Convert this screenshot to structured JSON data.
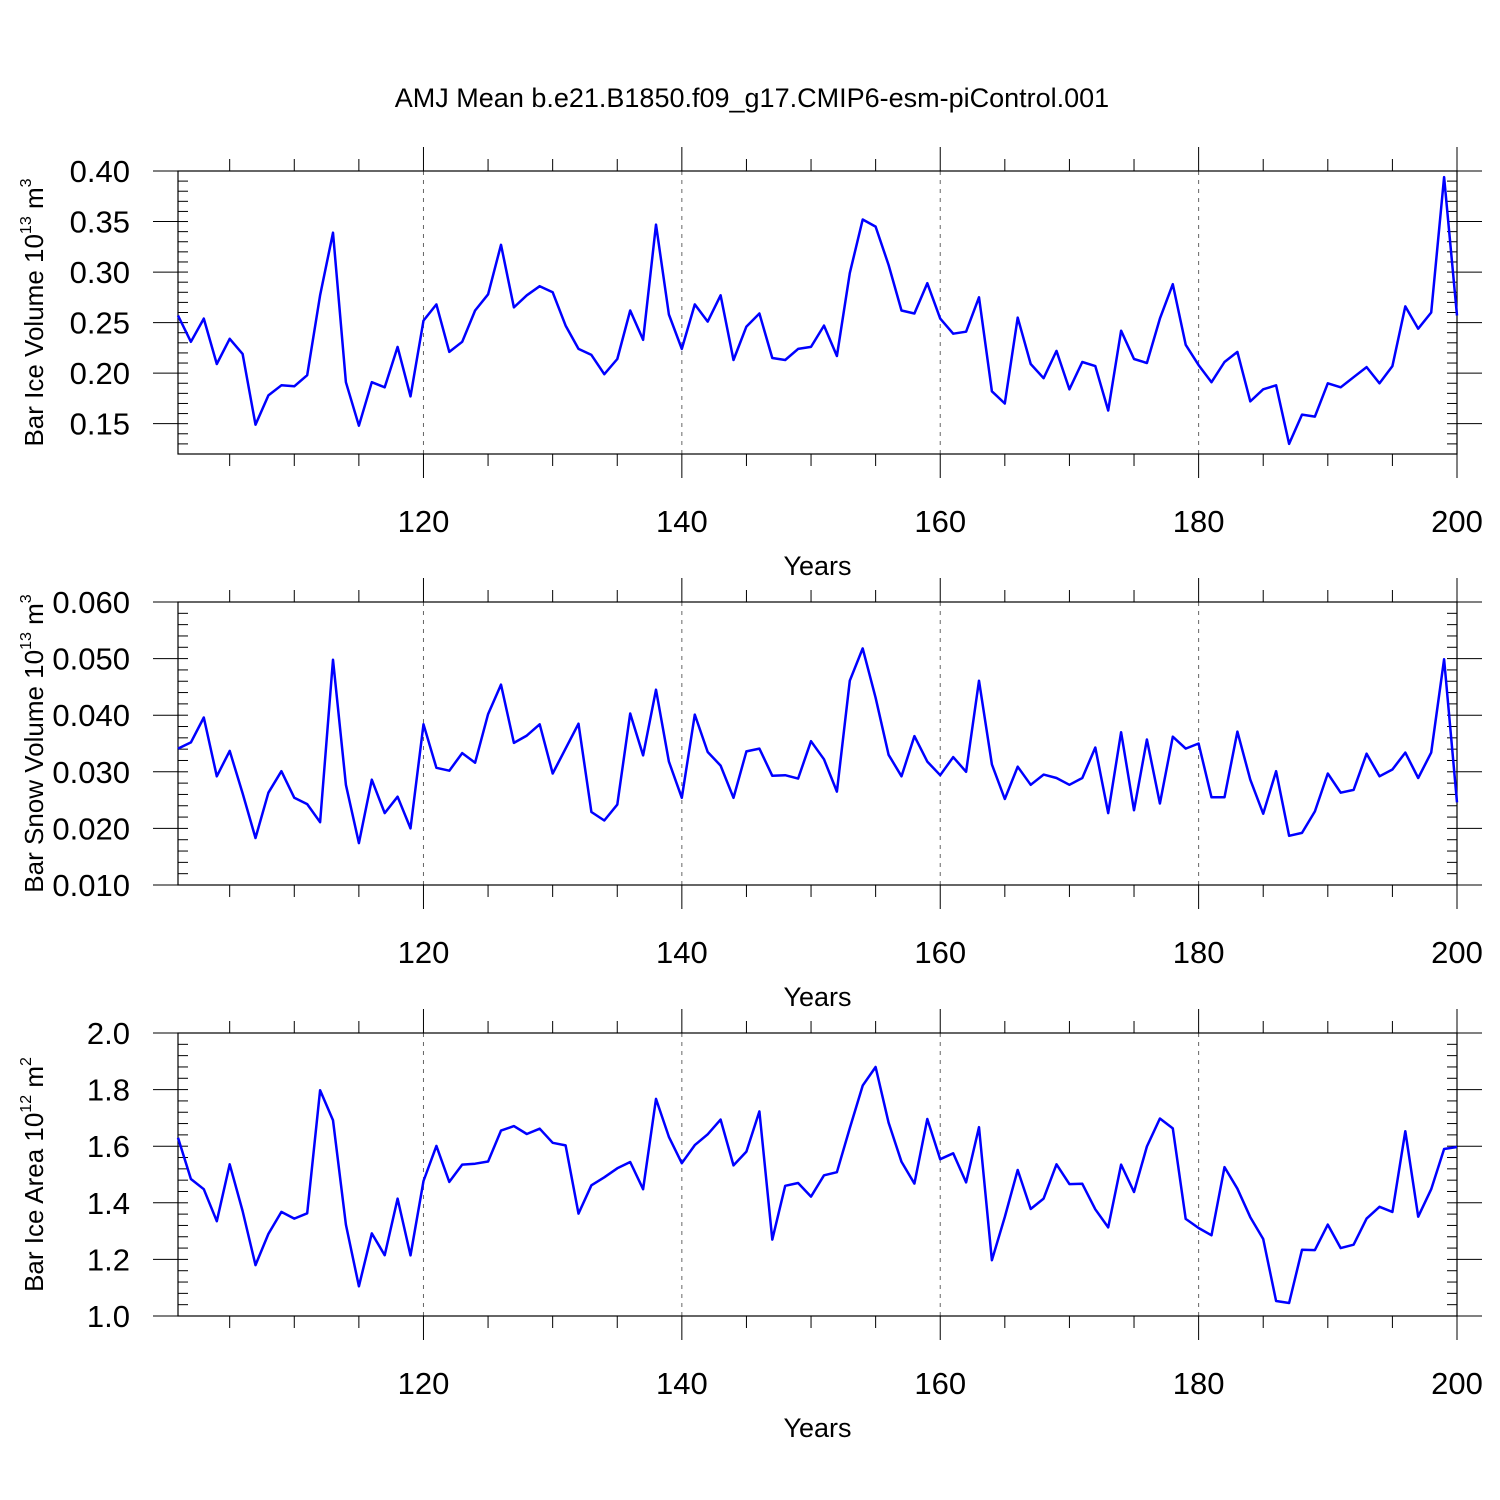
{
  "title": "AMJ Mean b.e21.B1850.f09_g17.CMIP6-esm-piControl.001",
  "colors": {
    "line": "#0000ff",
    "axes": "#000000",
    "grid": "#666666"
  },
  "chart_data": [
    {
      "type": "line",
      "xlabel": "Years",
      "ylabel": {
        "prefix": "Bar Ice Volume 10",
        "exp1": "13",
        "mid": " m",
        "exp2": "3"
      },
      "xlim": [
        101,
        200
      ],
      "ylim": [
        0.12,
        0.4
      ],
      "xticks": [
        120,
        140,
        160,
        180,
        200
      ],
      "xtick_labels": [
        "120",
        "140",
        "160",
        "180",
        "200"
      ],
      "yticks": [
        0.15,
        0.2,
        0.25,
        0.3,
        0.35,
        0.4
      ],
      "ytick_labels": [
        "0.15",
        "0.20",
        "0.25",
        "0.30",
        "0.35",
        "0.40"
      ],
      "yminor_step": 0.01,
      "grid": "dashed vertical at major x ticks",
      "x_start": 101,
      "values": [
        0.257,
        0.231,
        0.254,
        0.209,
        0.234,
        0.219,
        0.149,
        0.178,
        0.188,
        0.187,
        0.198,
        0.277,
        0.339,
        0.191,
        0.148,
        0.191,
        0.186,
        0.226,
        0.177,
        0.252,
        0.268,
        0.221,
        0.231,
        0.262,
        0.278,
        0.327,
        0.265,
        0.277,
        0.286,
        0.28,
        0.247,
        0.224,
        0.218,
        0.199,
        0.214,
        0.262,
        0.233,
        0.347,
        0.258,
        0.224,
        0.268,
        0.251,
        0.277,
        0.213,
        0.246,
        0.259,
        0.215,
        0.213,
        0.224,
        0.226,
        0.247,
        0.217,
        0.299,
        0.352,
        0.345,
        0.307,
        0.262,
        0.259,
        0.289,
        0.254,
        0.239,
        0.241,
        0.275,
        0.182,
        0.17,
        0.255,
        0.209,
        0.195,
        0.222,
        0.184,
        0.211,
        0.207,
        0.163,
        0.242,
        0.214,
        0.21,
        0.254,
        0.288,
        0.228,
        0.208,
        0.191,
        0.211,
        0.221,
        0.172,
        0.184,
        0.188,
        0.13,
        0.159,
        0.157,
        0.19,
        0.186,
        0.196,
        0.206,
        0.19,
        0.207,
        0.266,
        0.244,
        0.26,
        0.394,
        0.257
      ]
    },
    {
      "type": "line",
      "xlabel": "Years",
      "ylabel": {
        "prefix": "Bar Snow Volume 10",
        "exp1": "13",
        "mid": " m",
        "exp2": "3"
      },
      "xlim": [
        101,
        200
      ],
      "ylim": [
        0.01,
        0.06
      ],
      "xticks": [
        120,
        140,
        160,
        180,
        200
      ],
      "xtick_labels": [
        "120",
        "140",
        "160",
        "180",
        "200"
      ],
      "yticks": [
        0.01,
        0.02,
        0.03,
        0.04,
        0.05,
        0.06
      ],
      "ytick_labels": [
        "0.010",
        "0.020",
        "0.030",
        "0.040",
        "0.050",
        "0.060"
      ],
      "yminor_step": 0.002,
      "grid": "dashed vertical at major x ticks",
      "x_start": 101,
      "values": [
        0.0341,
        0.0352,
        0.0396,
        0.0292,
        0.0337,
        0.0262,
        0.0183,
        0.0263,
        0.0301,
        0.0254,
        0.0243,
        0.0211,
        0.0498,
        0.0277,
        0.0174,
        0.0286,
        0.0227,
        0.0256,
        0.02,
        0.0384,
        0.0307,
        0.0302,
        0.0333,
        0.0316,
        0.0402,
        0.0454,
        0.0351,
        0.0364,
        0.0384,
        0.0297,
        0.0341,
        0.0385,
        0.0229,
        0.0214,
        0.0242,
        0.0403,
        0.0329,
        0.0445,
        0.0318,
        0.0254,
        0.0401,
        0.0335,
        0.0311,
        0.0254,
        0.0336,
        0.0341,
        0.0293,
        0.0294,
        0.0288,
        0.0354,
        0.0322,
        0.0265,
        0.0461,
        0.0518,
        0.0431,
        0.033,
        0.0292,
        0.0363,
        0.0318,
        0.0294,
        0.0326,
        0.03,
        0.0461,
        0.0313,
        0.0252,
        0.0309,
        0.0277,
        0.0295,
        0.0289,
        0.0277,
        0.0289,
        0.0343,
        0.0227,
        0.037,
        0.0232,
        0.0357,
        0.0244,
        0.0362,
        0.0341,
        0.035,
        0.0255,
        0.0255,
        0.0371,
        0.0286,
        0.0226,
        0.0301,
        0.0187,
        0.0192,
        0.023,
        0.0297,
        0.0263,
        0.0268,
        0.0332,
        0.0292,
        0.0304,
        0.0334,
        0.0289,
        0.0334,
        0.0499,
        0.0246
      ]
    },
    {
      "type": "line",
      "xlabel": "Years",
      "ylabel": {
        "prefix": "Bar Ice Area 10",
        "exp1": "12",
        "mid": " m",
        "exp2": "2"
      },
      "xlim": [
        101,
        200
      ],
      "ylim": [
        1.0,
        2.0
      ],
      "xticks": [
        120,
        140,
        160,
        180,
        200
      ],
      "xtick_labels": [
        "120",
        "140",
        "160",
        "180",
        "200"
      ],
      "yticks": [
        1.0,
        1.2,
        1.4,
        1.6,
        1.8,
        2.0
      ],
      "ytick_labels": [
        "1.0",
        "1.2",
        "1.4",
        "1.6",
        "1.8",
        "2.0"
      ],
      "yminor_step": 0.04,
      "grid": "dashed vertical at major x ticks",
      "x_start": 101,
      "values": [
        1.63,
        1.484,
        1.448,
        1.335,
        1.536,
        1.371,
        1.18,
        1.29,
        1.368,
        1.344,
        1.363,
        1.798,
        1.692,
        1.323,
        1.105,
        1.292,
        1.215,
        1.415,
        1.214,
        1.477,
        1.601,
        1.474,
        1.535,
        1.538,
        1.546,
        1.655,
        1.671,
        1.643,
        1.662,
        1.612,
        1.603,
        1.362,
        1.462,
        1.49,
        1.522,
        1.544,
        1.448,
        1.767,
        1.633,
        1.54,
        1.604,
        1.642,
        1.694,
        1.532,
        1.581,
        1.723,
        1.27,
        1.46,
        1.47,
        1.422,
        1.497,
        1.508,
        1.664,
        1.814,
        1.88,
        1.683,
        1.545,
        1.468,
        1.696,
        1.554,
        1.575,
        1.472,
        1.667,
        1.197,
        1.35,
        1.516,
        1.378,
        1.415,
        1.536,
        1.466,
        1.467,
        1.377,
        1.313,
        1.535,
        1.438,
        1.599,
        1.698,
        1.663,
        1.343,
        1.311,
        1.285,
        1.526,
        1.45,
        1.349,
        1.272,
        1.053,
        1.046,
        1.234,
        1.233,
        1.323,
        1.24,
        1.252,
        1.344,
        1.386,
        1.368,
        1.653,
        1.351,
        1.448,
        1.59,
        1.597
      ]
    }
  ]
}
